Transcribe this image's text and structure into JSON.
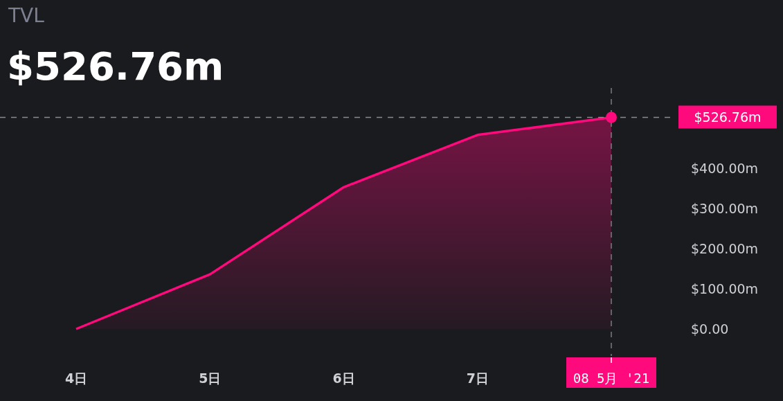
{
  "chart_data": {
    "type": "area",
    "title": "TVL",
    "subtitle": "$526.76m",
    "categories": [
      "4日",
      "5日",
      "6日",
      "7日",
      "08 5月 '21"
    ],
    "series": [
      {
        "color": "#ff0a7c",
        "values": [
          0,
          136,
          353,
          483,
          526.76
        ]
      }
    ],
    "ylim": [
      0,
      600
    ],
    "yticks": [
      {
        "value": 0,
        "label": "$0.00"
      },
      {
        "value": 100,
        "label": "$100.00m"
      },
      {
        "value": 200,
        "label": "$200.00m"
      },
      {
        "value": 300,
        "label": "$300.00m"
      },
      {
        "value": 400,
        "label": "$400.00m"
      }
    ],
    "grid": false,
    "ref_lines": [
      {
        "axis": "y",
        "value": 526.76,
        "label": "$526.76m",
        "line_style": "dashed"
      },
      {
        "axis": "x",
        "value": "08 5月 '21",
        "line_style": "dashed"
      }
    ]
  }
}
